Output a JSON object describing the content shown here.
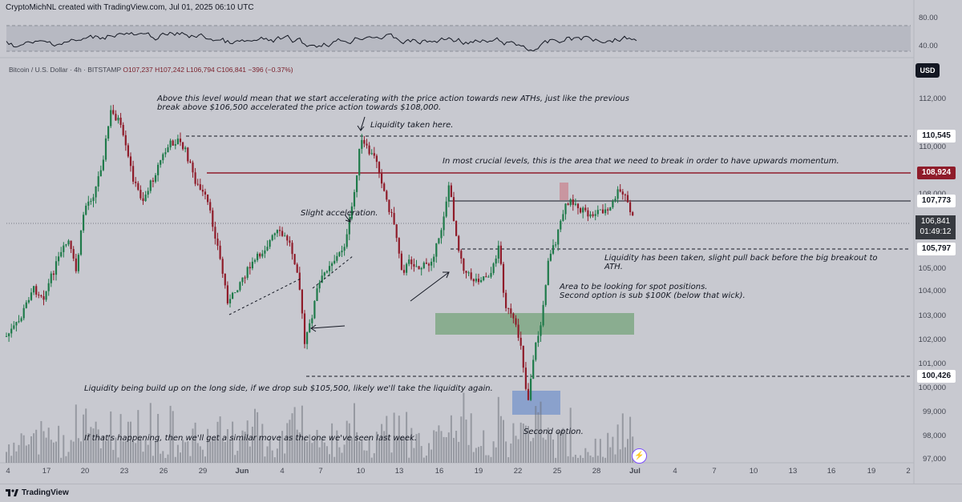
{
  "header": {
    "credit": "CryptoMichNL created with TradingView.com, Jul 01, 2025 06:10 UTC"
  },
  "symbol": {
    "name": "Bitcoin / U.S. Dollar · 4h · BITSTAMP",
    "open": "O107,237",
    "high": "H107,242",
    "low": "L106,794",
    "close": "C106,841",
    "change": "−396 (−0.37%)"
  },
  "currency_button": "USD",
  "rsi_axis": [
    "80.00",
    "40.00"
  ],
  "price_axis": [
    "112,000",
    "110,000",
    "108,000",
    "105,000",
    "104,000",
    "103,000",
    "102,000",
    "101,000",
    "100,000",
    "99,000",
    "98,000",
    "97,000"
  ],
  "price_labels": [
    {
      "value": "110,545",
      "style": "white"
    },
    {
      "value": "108,924",
      "style": "red"
    },
    {
      "value": "107,773",
      "style": "white"
    },
    {
      "value": "105,797",
      "style": "white"
    },
    {
      "value": "100,426",
      "style": "white"
    }
  ],
  "current": {
    "price": "106,841",
    "countdown": "01:49:12"
  },
  "time_axis": [
    "4",
    "17",
    "20",
    "23",
    "26",
    "29",
    "Jun",
    "4",
    "7",
    "10",
    "13",
    "16",
    "19",
    "22",
    "25",
    "28",
    "Jul",
    "4",
    "7",
    "10",
    "13",
    "16",
    "19",
    "2"
  ],
  "annotations": {
    "above_level": "Above this level would mean that we start accelerating with the price action towards new ATHs, just like the previous",
    "above_level_2": "break above $106,500 accelerated the price action towards $108,000.",
    "liquidity_taken": "Liquidity taken here.",
    "crucial": "In most crucial levels, this is the area that we need to break in order to have upwards momentum.",
    "slight_accel": "Slight acceleration.",
    "liq_pull": "Liquidity has been taken, slight pull back before the big breakout to",
    "liq_pull_2": "ATH.",
    "spot_area": "Area to be looking for spot positions.",
    "spot_area_2": "Second option is sub $100K (below that wick).",
    "liq_build": "Liquidity being build up on the long side, if we drop sub $105,500, likely we'll take the liquidity again.",
    "similar_move": "If that's happening, then we'll get a similar move as the one we've seen last week.",
    "second_option": "Second option."
  },
  "footer": {
    "brand": "TradingView"
  },
  "colors": {
    "background": "#c8c9d0",
    "bull": "#1f7a4a",
    "bear": "#8f1c2a",
    "resistance": "#8f1c2a",
    "zone_green": "#7fa885",
    "zone_blue": "#7f9acb"
  }
}
